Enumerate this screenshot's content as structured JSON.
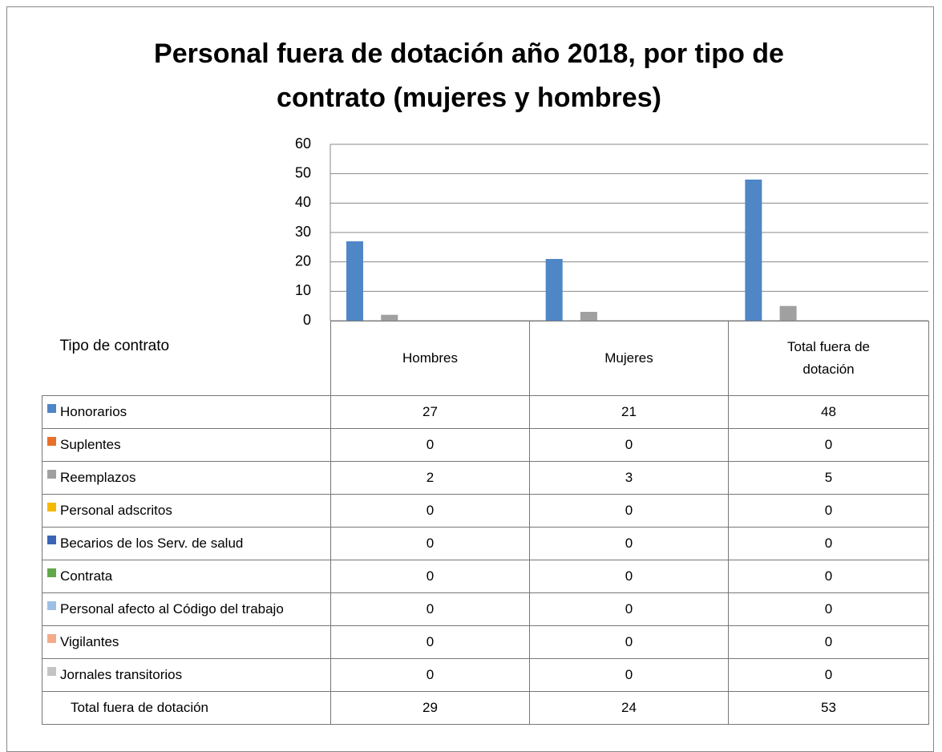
{
  "chart_data": {
    "type": "bar",
    "title": "Personal fuera de dotación año 2018, por tipo de contrato (mujeres y hombres)",
    "table_header": "Tipo de contrato",
    "categories": [
      "Hombres",
      "Mujeres",
      "Total fuera de dotación"
    ],
    "ylim": [
      0,
      60
    ],
    "yticks": [
      0,
      10,
      20,
      30,
      40,
      50,
      60
    ],
    "grid": true,
    "series": [
      {
        "name": "Honorarios",
        "color": "#4f86c6",
        "values": [
          27,
          21,
          48
        ]
      },
      {
        "name": "Suplentes",
        "color": "#e8702a",
        "values": [
          0,
          0,
          0
        ]
      },
      {
        "name": "Reemplazos",
        "color": "#a0a0a0",
        "values": [
          2,
          3,
          5
        ]
      },
      {
        "name": "Personal adscritos",
        "color": "#f5b800",
        "values": [
          0,
          0,
          0
        ]
      },
      {
        "name": "Becarios de los Serv. de salud",
        "color": "#3b64b4",
        "values": [
          0,
          0,
          0
        ]
      },
      {
        "name": "Contrata",
        "color": "#62a84a",
        "values": [
          0,
          0,
          0
        ]
      },
      {
        "name": "Personal afecto al Código del trabajo",
        "color": "#9dbfe4",
        "values": [
          0,
          0,
          0
        ]
      },
      {
        "name": "Vigilantes",
        "color": "#f3ab8a",
        "values": [
          0,
          0,
          0
        ]
      },
      {
        "name": "Jornales transitorios",
        "color": "#c4c4c4",
        "values": [
          0,
          0,
          0
        ]
      }
    ],
    "totals": {
      "label": "Total fuera de dotación",
      "values": [
        29,
        24,
        53
      ]
    }
  }
}
